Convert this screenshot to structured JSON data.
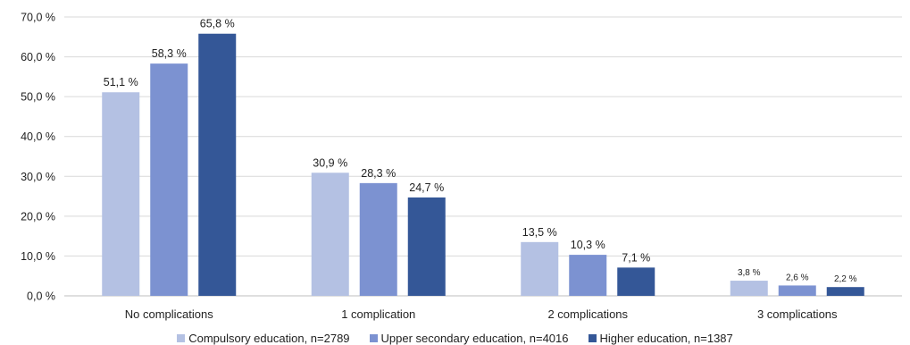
{
  "chart_data": {
    "type": "bar",
    "categories": [
      "No complications",
      "1 complication",
      "2 complications",
      "3 complications"
    ],
    "series": [
      {
        "name": "Compulsory education, n=2789",
        "color": "#b4c1e3",
        "values": [
          51.1,
          30.9,
          13.5,
          3.8
        ],
        "labels": [
          "51,1 %",
          "30,9 %",
          "13,5 %",
          "3,8 %"
        ]
      },
      {
        "name": "Upper secondary education, n=4016",
        "color": "#7c92d1",
        "values": [
          58.3,
          28.3,
          10.3,
          2.6
        ],
        "labels": [
          "58,3 %",
          "28,3 %",
          "10,3 %",
          "2,6 %"
        ]
      },
      {
        "name": "Higher education, n=1387",
        "color": "#345797",
        "values": [
          65.8,
          24.7,
          7.1,
          2.2
        ],
        "labels": [
          "65,8 %",
          "24,7 %",
          "7,1 %",
          "2,2 %"
        ]
      }
    ],
    "ylim": [
      0,
      70
    ],
    "yticks": [
      0,
      10,
      20,
      30,
      40,
      50,
      60,
      70
    ],
    "yticklabels": [
      "0,0 %",
      "10,0 %",
      "20,0 %",
      "30,0 %",
      "40,0 %",
      "50,0 %",
      "60,0 %",
      "70,0 %"
    ],
    "grid": true,
    "legend_position": "bottom",
    "title": "",
    "xlabel": "",
    "ylabel": ""
  }
}
